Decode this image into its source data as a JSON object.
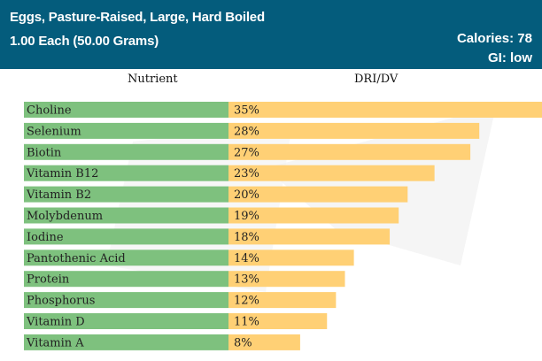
{
  "header": {
    "title": "Eggs, Pasture-Raised, Large, Hard Boiled",
    "subtitle": "1.00 Each (50.00 Grams)",
    "calories": "Calories: 78",
    "gi": "GI: low"
  },
  "columns": {
    "nutrient": "Nutrient",
    "dri": "DRI/DV"
  },
  "colors": {
    "header_bg": "#045c7c",
    "label_bar": "#7ec17e",
    "value_bar": "#ffd075"
  },
  "chart_data": {
    "type": "bar",
    "orientation": "horizontal",
    "categories": [
      "Choline",
      "Selenium",
      "Biotin",
      "Vitamin B12",
      "Vitamin B2",
      "Molybdenum",
      "Iodine",
      "Pantothenic Acid",
      "Protein",
      "Phosphorus",
      "Vitamin D",
      "Vitamin A"
    ],
    "values": [
      35,
      28,
      27,
      23,
      20,
      19,
      18,
      14,
      13,
      12,
      11,
      8
    ],
    "value_labels": [
      "35%",
      "28%",
      "27%",
      "23%",
      "20%",
      "19%",
      "18%",
      "14%",
      "13%",
      "12%",
      "11%",
      "8%"
    ],
    "xlim": [
      0,
      35
    ]
  }
}
